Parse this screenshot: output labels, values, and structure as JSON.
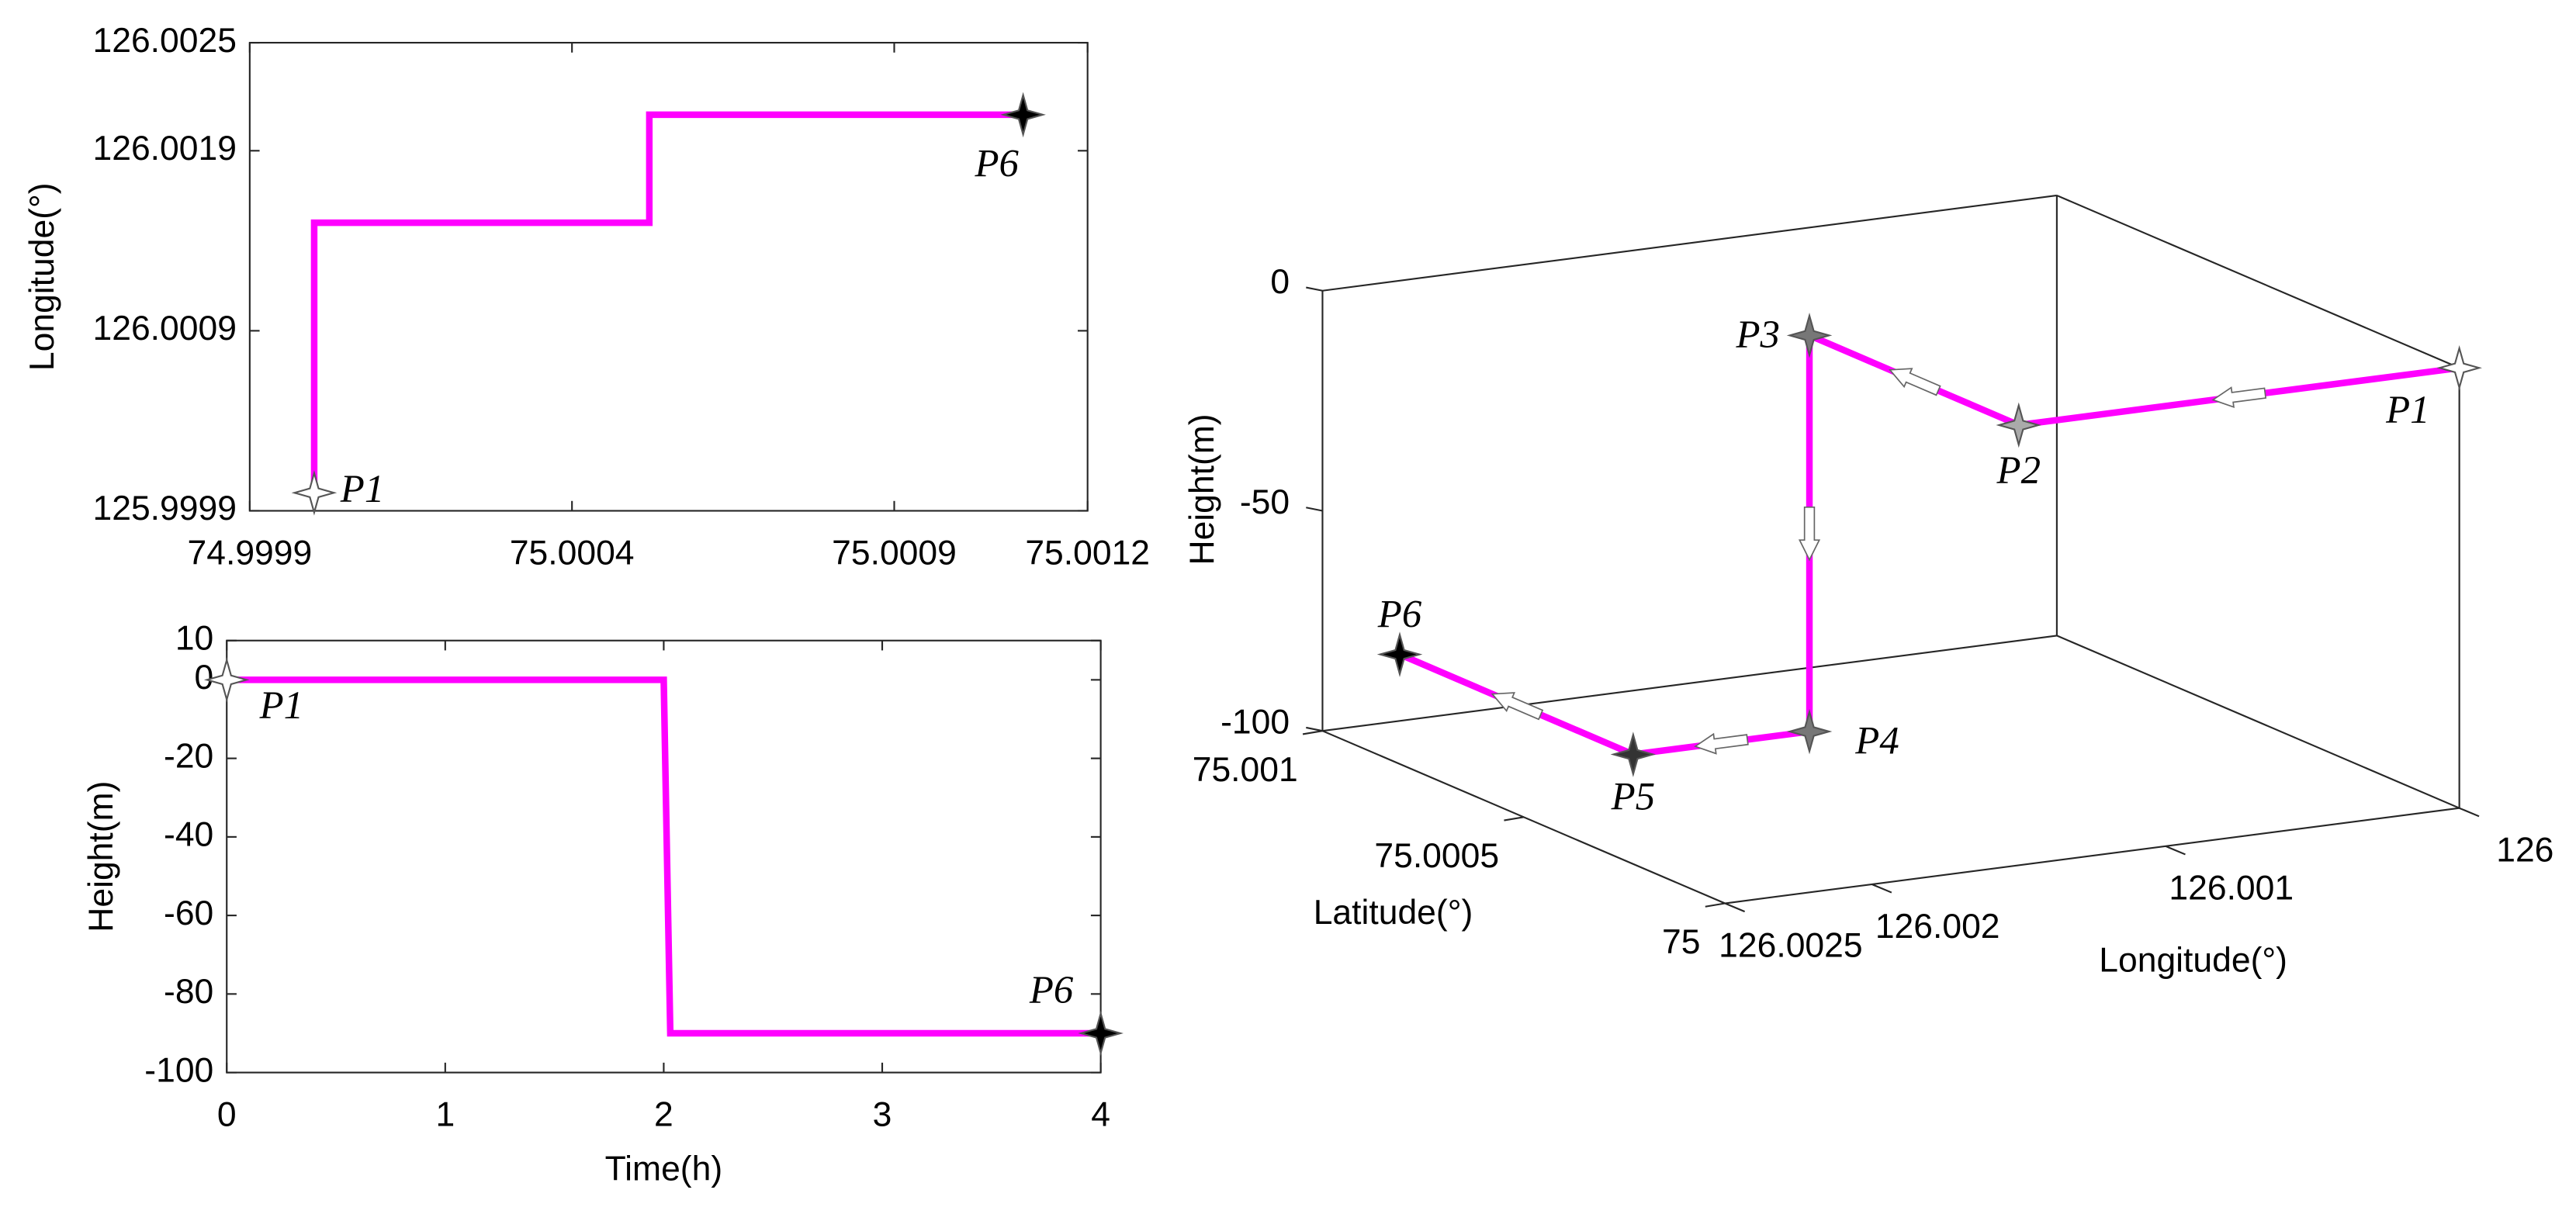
{
  "chart_data": [
    {
      "type": "line",
      "ylabel": "Longitude(°)",
      "x": [
        75.0,
        75.0,
        75.00052,
        75.00052,
        75.0011
      ],
      "values": [
        126.0,
        126.0015,
        126.0015,
        126.0021,
        126.0021
      ],
      "color": "#ff00ff",
      "xlim": [
        74.9999,
        75.0012
      ],
      "xticks": [
        74.9999,
        75.0004,
        75.0009,
        75.0012
      ],
      "ylim": [
        125.9999,
        126.0025
      ],
      "yticks": [
        125.9999,
        126.0009,
        126.0019,
        126.0025
      ],
      "markers": [
        {
          "label": "P1",
          "x": 75.0,
          "y": 126.0,
          "color": "#ffffff"
        },
        {
          "label": "P6",
          "x": 75.0011,
          "y": 126.0021,
          "color": "#000000"
        }
      ]
    },
    {
      "type": "line",
      "xlabel": "Time(h)",
      "ylabel": "Height(m)",
      "x": [
        0,
        2,
        2.03,
        4
      ],
      "values": [
        0,
        0,
        -90,
        -90
      ],
      "color": "#ff00ff",
      "xlim": [
        0,
        4
      ],
      "xticks": [
        0,
        1,
        2,
        3,
        4
      ],
      "ylim": [
        -100,
        10
      ],
      "yticks": [
        -100,
        -80,
        -60,
        -40,
        -20,
        0,
        10
      ],
      "markers": [
        {
          "label": "P1",
          "x": 0,
          "y": 0,
          "color": "#ffffff"
        },
        {
          "label": "P6",
          "x": 4,
          "y": -90,
          "color": "#000000"
        }
      ]
    },
    {
      "type": "line3d",
      "xlabel": "Longitude(°)",
      "ylabel": "Latitude(°)",
      "zlabel": "Height(m)",
      "labels": [
        "P1",
        "P2",
        "P3",
        "P4",
        "P5",
        "P6"
      ],
      "x": [
        126.0,
        126.0015,
        126.0015,
        126.0015,
        126.0021,
        126.0021
      ],
      "y": [
        75.0,
        75.0,
        75.00052,
        75.00052,
        75.00052,
        75.0011
      ],
      "z": [
        0,
        0,
        0,
        -90,
        -90,
        -90
      ],
      "color": "#ff00ff",
      "marker_colors": [
        "#ffffff",
        "#aaaaaa",
        "#777777",
        "#777777",
        "#333333",
        "#000000"
      ],
      "xlim": [
        126,
        126.0025
      ],
      "xticks": [
        126,
        126.001,
        126.002,
        126.0025
      ],
      "ylim": [
        75,
        75.001
      ],
      "yticks": [
        75,
        75.0005,
        75.001
      ],
      "zlim": [
        -100,
        0
      ],
      "zticks": [
        -100,
        -50,
        0
      ]
    }
  ]
}
